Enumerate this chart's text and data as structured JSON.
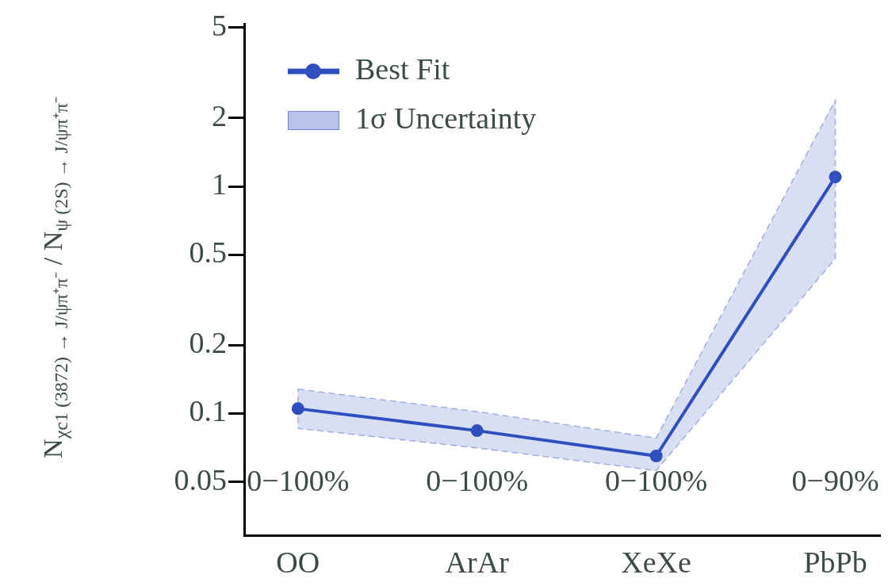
{
  "chart_data": {
    "type": "line",
    "ylabel": "N$_{χc1 (3872) → J/ψπ⁺π⁻}$ / N$_{ψ (2S) → J/ψπ⁺π⁻}$",
    "categories": [
      "OO",
      "ArAr",
      "XeXe",
      "PbPb"
    ],
    "series": [
      {
        "name": "Best Fit",
        "color": "#2f4fbf",
        "values": [
          0.105,
          0.084,
          0.065,
          1.1
        ],
        "lower": [
          0.086,
          0.0705,
          0.056,
          0.48
        ],
        "upper": [
          0.128,
          0.102,
          0.078,
          2.4
        ]
      }
    ],
    "log": "y",
    "ylim": [
      0.029,
      5.2
    ],
    "yticks": [
      0.05,
      0.1,
      0.2,
      0.5,
      1,
      2,
      5
    ],
    "grid": false,
    "legend": "top left",
    "marker": "circle",
    "line_style": "solid",
    "annotations": [
      "0−100%",
      "0−100%",
      "0−100%",
      "0−90%",
      "1σ Uncertainty"
    ]
  }
}
